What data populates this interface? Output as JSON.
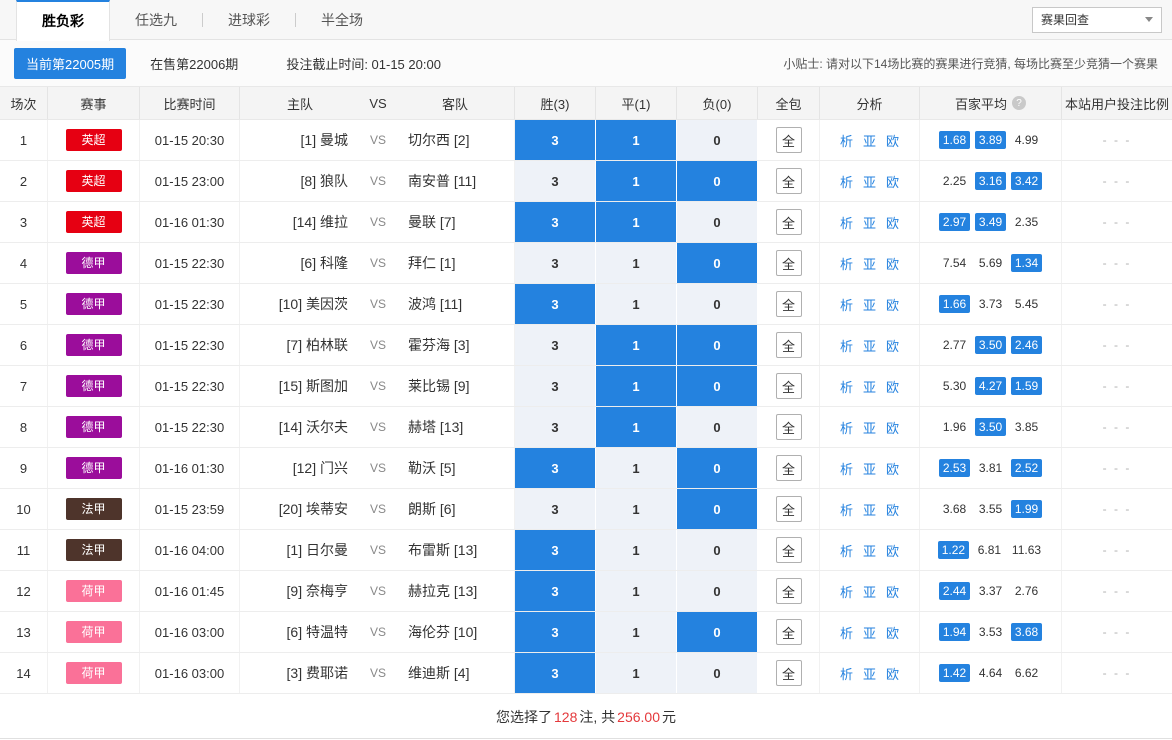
{
  "tabs": {
    "items": [
      {
        "label": "胜负彩",
        "active": true
      },
      {
        "label": "任选九",
        "active": false
      },
      {
        "label": "进球彩",
        "active": false
      },
      {
        "label": "半全场",
        "active": false
      }
    ],
    "result_check_label": "赛果回查"
  },
  "period_bar": {
    "current_period": "当前第22005期",
    "on_sale_period": "在售第22006期",
    "deadline": "投注截止时间: 01-15 20:00",
    "tip": "小贴士: 请对以下14场比赛的赛果进行竞猜, 每场比赛至少竞猜一个赛果"
  },
  "colors": {
    "accent_blue": "#2482df",
    "selected_cell_blue": "#2482df",
    "unselected_cell_bg": "#eef2f8",
    "red": "#e4393c"
  },
  "table": {
    "headers": {
      "seq": "场次",
      "event": "赛事",
      "time": "比赛时间",
      "home": "主队",
      "vs": "VS",
      "away": "客队",
      "win": "胜(3)",
      "draw": "平(1)",
      "lose": "负(0)",
      "all": "全包",
      "analysis": "分析",
      "avg": "百家平均",
      "avg_help": "?",
      "ratio": "本站用户投注比例"
    },
    "vs_label": "VS",
    "quan_label": "全",
    "sel_values": [
      "3",
      "1",
      "0"
    ],
    "analysis_labels": [
      "析",
      "亚",
      "欧"
    ],
    "rows": [
      {
        "no": "1",
        "league": "英超",
        "league_color": "#e60012",
        "time": "01-15 20:30",
        "home": "[1] 曼城",
        "away": "切尔西 [2]",
        "sel": [
          true,
          true,
          false
        ],
        "odds": [
          "1.68",
          "3.89",
          "4.99"
        ],
        "odds_hl": [
          true,
          true,
          false
        ],
        "ratio": "- - -"
      },
      {
        "no": "2",
        "league": "英超",
        "league_color": "#e60012",
        "time": "01-15 23:00",
        "home": "[8] 狼队",
        "away": "南安普 [11]",
        "sel": [
          false,
          true,
          true
        ],
        "odds": [
          "2.25",
          "3.16",
          "3.42"
        ],
        "odds_hl": [
          false,
          true,
          true
        ],
        "ratio": "- - -"
      },
      {
        "no": "3",
        "league": "英超",
        "league_color": "#e60012",
        "time": "01-16 01:30",
        "home": "[14] 维拉",
        "away": "曼联 [7]",
        "sel": [
          true,
          true,
          false
        ],
        "odds": [
          "2.97",
          "3.49",
          "2.35"
        ],
        "odds_hl": [
          true,
          true,
          false
        ],
        "ratio": "- - -"
      },
      {
        "no": "4",
        "league": "德甲",
        "league_color": "#9b0d9b",
        "time": "01-15 22:30",
        "home": "[6] 科隆",
        "away": "拜仁 [1]",
        "sel": [
          false,
          false,
          true
        ],
        "odds": [
          "7.54",
          "5.69",
          "1.34"
        ],
        "odds_hl": [
          false,
          false,
          true
        ],
        "ratio": "- - -"
      },
      {
        "no": "5",
        "league": "德甲",
        "league_color": "#9b0d9b",
        "time": "01-15 22:30",
        "home": "[10] 美因茨",
        "away": "波鸿 [11]",
        "sel": [
          true,
          false,
          false
        ],
        "odds": [
          "1.66",
          "3.73",
          "5.45"
        ],
        "odds_hl": [
          true,
          false,
          false
        ],
        "ratio": "- - -"
      },
      {
        "no": "6",
        "league": "德甲",
        "league_color": "#9b0d9b",
        "time": "01-15 22:30",
        "home": "[7] 柏林联",
        "away": "霍芬海 [3]",
        "sel": [
          false,
          true,
          true
        ],
        "odds": [
          "2.77",
          "3.50",
          "2.46"
        ],
        "odds_hl": [
          false,
          true,
          true
        ],
        "ratio": "- - -"
      },
      {
        "no": "7",
        "league": "德甲",
        "league_color": "#9b0d9b",
        "time": "01-15 22:30",
        "home": "[15] 斯图加",
        "away": "莱比锡 [9]",
        "sel": [
          false,
          true,
          true
        ],
        "odds": [
          "5.30",
          "4.27",
          "1.59"
        ],
        "odds_hl": [
          false,
          true,
          true
        ],
        "ratio": "- - -"
      },
      {
        "no": "8",
        "league": "德甲",
        "league_color": "#9b0d9b",
        "time": "01-15 22:30",
        "home": "[14] 沃尔夫",
        "away": "赫塔 [13]",
        "sel": [
          false,
          true,
          false
        ],
        "odds": [
          "1.96",
          "3.50",
          "3.85"
        ],
        "odds_hl": [
          false,
          true,
          false
        ],
        "ratio": "- - -"
      },
      {
        "no": "9",
        "league": "德甲",
        "league_color": "#9b0d9b",
        "time": "01-16 01:30",
        "home": "[12] 门兴",
        "away": "勒沃 [5]",
        "sel": [
          true,
          false,
          true
        ],
        "odds": [
          "2.53",
          "3.81",
          "2.52"
        ],
        "odds_hl": [
          true,
          false,
          true
        ],
        "ratio": "- - -"
      },
      {
        "no": "10",
        "league": "法甲",
        "league_color": "#4e342b",
        "time": "01-15 23:59",
        "home": "[20] 埃蒂安",
        "away": "朗斯 [6]",
        "sel": [
          false,
          false,
          true
        ],
        "odds": [
          "3.68",
          "3.55",
          "1.99"
        ],
        "odds_hl": [
          false,
          false,
          true
        ],
        "ratio": "- - -"
      },
      {
        "no": "11",
        "league": "法甲",
        "league_color": "#4e342b",
        "time": "01-16 04:00",
        "home": "[1] 日尔曼",
        "away": "布雷斯 [13]",
        "sel": [
          true,
          false,
          false
        ],
        "odds": [
          "1.22",
          "6.81",
          "11.63"
        ],
        "odds_hl": [
          true,
          false,
          false
        ],
        "ratio": "- - -"
      },
      {
        "no": "12",
        "league": "荷甲",
        "league_color": "#fa7198",
        "time": "01-16 01:45",
        "home": "[9] 奈梅亨",
        "away": "赫拉克 [13]",
        "sel": [
          true,
          false,
          false
        ],
        "odds": [
          "2.44",
          "3.37",
          "2.76"
        ],
        "odds_hl": [
          true,
          false,
          false
        ],
        "ratio": "- - -"
      },
      {
        "no": "13",
        "league": "荷甲",
        "league_color": "#fa7198",
        "time": "01-16 03:00",
        "home": "[6] 特温特",
        "away": "海伦芬 [10]",
        "sel": [
          true,
          false,
          true
        ],
        "odds": [
          "1.94",
          "3.53",
          "3.68"
        ],
        "odds_hl": [
          true,
          false,
          true
        ],
        "ratio": "- - -"
      },
      {
        "no": "14",
        "league": "荷甲",
        "league_color": "#fa7198",
        "time": "01-16 03:00",
        "home": "[3] 费耶诺",
        "away": "维迪斯 [4]",
        "sel": [
          true,
          false,
          false
        ],
        "odds": [
          "1.42",
          "4.64",
          "6.62"
        ],
        "odds_hl": [
          true,
          false,
          false
        ],
        "ratio": "- - -"
      }
    ]
  },
  "summary": {
    "prefix": "您选择了 ",
    "count": "128",
    "middle": " 注, 共 ",
    "amount": "256.00",
    "suffix": "元"
  }
}
